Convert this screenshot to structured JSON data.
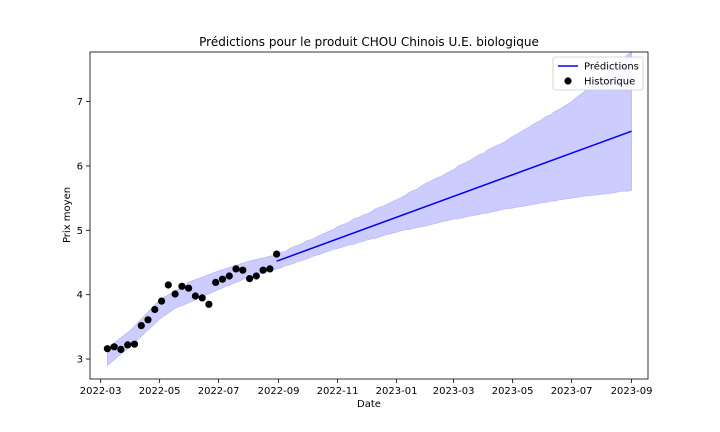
{
  "chart_data": {
    "type": "line",
    "title": "Prédictions pour le produit CHOU Chinois U.E. biologique",
    "xlabel": "Date",
    "ylabel": "Prix moyen",
    "xlim": [
      "2022-02-18",
      "2023-09-18"
    ],
    "ylim": [
      2.69,
      7.77
    ],
    "x_ticks": [
      "2022-03",
      "2022-05",
      "2022-07",
      "2022-09",
      "2022-11",
      "2023-01",
      "2023-03",
      "2023-05",
      "2023-07",
      "2023-09"
    ],
    "y_ticks": [
      3,
      4,
      5,
      6,
      7
    ],
    "grid": false,
    "legend_position": "top-right",
    "colors": {
      "prediction": "#0000ff",
      "band": "#ccccff",
      "history": "#000000"
    },
    "series": [
      {
        "name": "Historique",
        "kind": "scatter",
        "x": [
          "2022-03-08",
          "2022-03-15",
          "2022-03-22",
          "2022-03-29",
          "2022-04-05",
          "2022-04-12",
          "2022-04-19",
          "2022-04-26",
          "2022-05-03",
          "2022-05-10",
          "2022-05-17",
          "2022-05-24",
          "2022-05-31",
          "2022-06-07",
          "2022-06-14",
          "2022-06-21",
          "2022-06-28",
          "2022-07-05",
          "2022-07-12",
          "2022-07-19",
          "2022-07-26",
          "2022-08-02",
          "2022-08-09",
          "2022-08-16",
          "2022-08-23",
          "2022-08-30"
        ],
        "y": [
          3.16,
          3.19,
          3.15,
          3.22,
          3.23,
          3.52,
          3.61,
          3.77,
          3.9,
          4.15,
          4.01,
          4.13,
          4.1,
          3.98,
          3.95,
          3.85,
          4.19,
          4.24,
          4.29,
          4.4,
          4.38,
          4.25,
          4.29,
          4.38,
          4.4,
          4.63
        ]
      },
      {
        "name": "Prédictions",
        "kind": "line",
        "x": [
          "2022-08-30",
          "2023-09-01"
        ],
        "y": [
          4.52,
          6.54
        ]
      }
    ],
    "confidence_band": {
      "x": [
        "2022-03-08",
        "2022-04-01",
        "2022-05-01",
        "2022-05-16",
        "2022-06-01",
        "2022-07-01",
        "2022-08-01",
        "2022-08-30",
        "2022-11-01",
        "2023-01-01",
        "2023-03-01",
        "2023-05-01",
        "2023-07-01",
        "2023-09-01"
      ],
      "upper": [
        3.17,
        3.45,
        3.92,
        4.05,
        4.2,
        4.37,
        4.52,
        4.62,
        5.05,
        5.48,
        5.95,
        6.45,
        7.0,
        7.77
      ],
      "lower": [
        2.9,
        3.2,
        3.62,
        3.78,
        3.88,
        4.08,
        4.27,
        4.4,
        4.72,
        4.97,
        5.17,
        5.35,
        5.5,
        5.62
      ]
    }
  }
}
